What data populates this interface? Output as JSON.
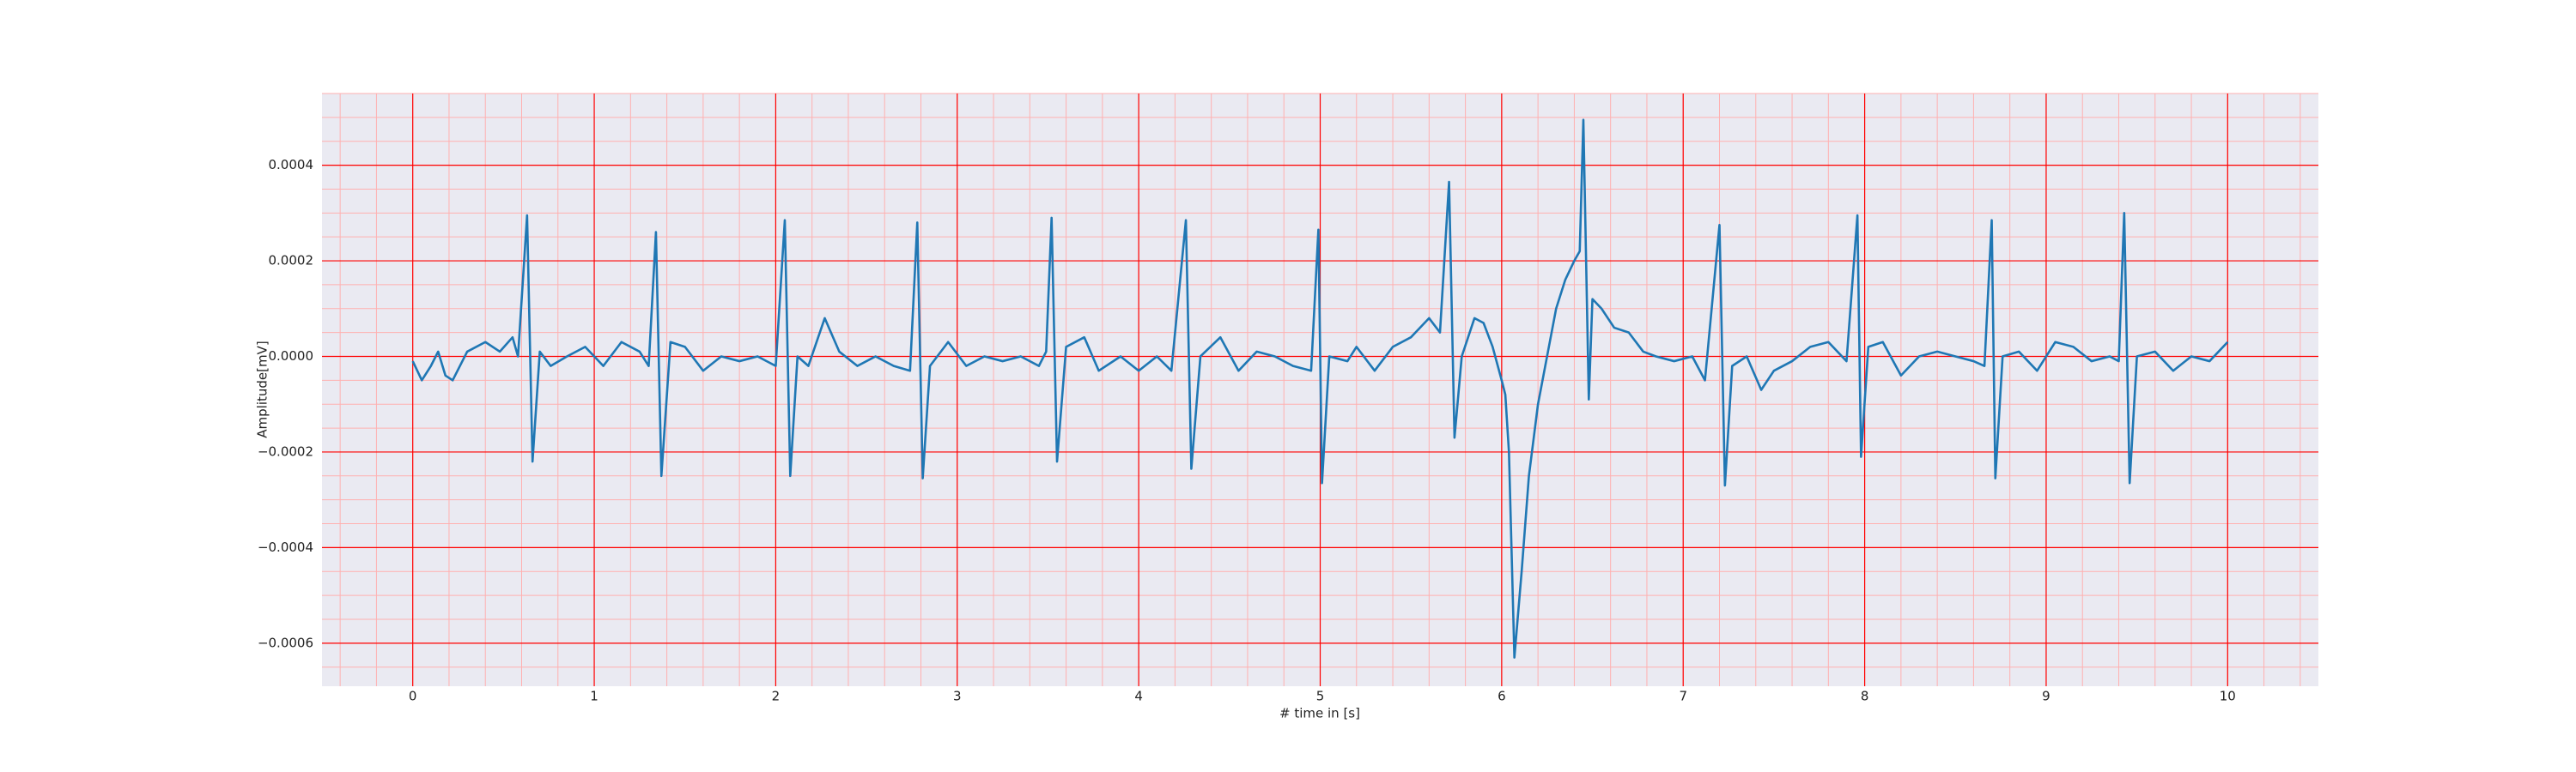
{
  "chart_data": {
    "type": "line",
    "xlabel": "# time in [s]",
    "ylabel": "Amplitude[mV]",
    "xlim": [
      -0.5,
      10.5
    ],
    "xticks": [
      0,
      1,
      2,
      3,
      4,
      5,
      6,
      7,
      8,
      9,
      10
    ],
    "ylim": [
      -0.00069,
      0.00055
    ],
    "yticks": [
      {
        "value": -0.0006,
        "label": "−0.0006"
      },
      {
        "value": -0.0004,
        "label": "−0.0004"
      },
      {
        "value": -0.0002,
        "label": "−0.0002"
      },
      {
        "value": 0,
        "label": "0.0000"
      },
      {
        "value": 0.0002,
        "label": "0.0002"
      },
      {
        "value": 0.0004,
        "label": "0.0004"
      }
    ],
    "grid": true,
    "minor_grid": true,
    "grid_color": "#ff0000",
    "minor_grid_color": "#ffb0b0",
    "background": "#eaeaf2",
    "series": [
      {
        "color": "#1f77b4",
        "x": [
          0,
          0.05,
          0.1,
          0.14,
          0.18,
          0.22,
          0.3,
          0.4,
          0.48,
          0.55,
          0.58,
          0.63,
          0.66,
          0.7,
          0.76,
          0.85,
          0.95,
          1.05,
          1.15,
          1.25,
          1.3,
          1.34,
          1.37,
          1.42,
          1.5,
          1.6,
          1.7,
          1.8,
          1.9,
          2.0,
          2.05,
          2.08,
          2.12,
          2.18,
          2.27,
          2.35,
          2.45,
          2.55,
          2.65,
          2.74,
          2.78,
          2.81,
          2.85,
          2.95,
          3.05,
          3.15,
          3.25,
          3.35,
          3.45,
          3.49,
          3.52,
          3.55,
          3.6,
          3.7,
          3.78,
          3.9,
          4.0,
          4.1,
          4.18,
          4.26,
          4.29,
          4.34,
          4.45,
          4.55,
          4.65,
          4.75,
          4.85,
          4.95,
          4.99,
          5.01,
          5.05,
          5.15,
          5.2,
          5.3,
          5.4,
          5.5,
          5.6,
          5.66,
          5.71,
          5.74,
          5.78,
          5.85,
          5.9,
          5.95,
          6.0,
          6.02,
          6.04,
          6.07,
          6.11,
          6.15,
          6.2,
          6.25,
          6.3,
          6.35,
          6.4,
          6.43,
          6.45,
          6.48,
          6.5,
          6.55,
          6.62,
          6.7,
          6.78,
          6.85,
          6.95,
          7.05,
          7.12,
          7.2,
          7.23,
          7.27,
          7.35,
          7.43,
          7.5,
          7.6,
          7.7,
          7.8,
          7.9,
          7.96,
          7.98,
          8.02,
          8.1,
          8.2,
          8.3,
          8.4,
          8.5,
          8.6,
          8.66,
          8.7,
          8.72,
          8.76,
          8.85,
          8.95,
          9.05,
          9.15,
          9.25,
          9.35,
          9.4,
          9.43,
          9.46,
          9.5,
          9.6,
          9.7,
          9.8,
          9.9,
          10.0
        ],
        "values": [
          -1e-05,
          -5e-05,
          -2e-05,
          1e-05,
          -4e-05,
          -5e-05,
          1e-05,
          3e-05,
          1e-05,
          4e-05,
          0.0,
          0.000295,
          -0.00022,
          1e-05,
          -2e-05,
          0.0,
          2e-05,
          -2e-05,
          3e-05,
          1e-05,
          -2e-05,
          0.00026,
          -0.00025,
          3e-05,
          2e-05,
          -3e-05,
          0.0,
          -1e-05,
          0.0,
          -2e-05,
          0.000285,
          -0.00025,
          0.0,
          -2e-05,
          8e-05,
          1e-05,
          -2e-05,
          0.0,
          -2e-05,
          -3e-05,
          0.00028,
          -0.000255,
          -2e-05,
          3e-05,
          -2e-05,
          0.0,
          -1e-05,
          0.0,
          -2e-05,
          1e-05,
          0.00029,
          -0.00022,
          2e-05,
          4e-05,
          -3e-05,
          0.0,
          -3e-05,
          0.0,
          -3e-05,
          0.000285,
          -0.000235,
          0.0,
          4e-05,
          -3e-05,
          1e-05,
          0.0,
          -2e-05,
          -3e-05,
          0.000265,
          -0.000265,
          0.0,
          -1e-05,
          2e-05,
          -3e-05,
          2e-05,
          4e-05,
          8e-05,
          5e-05,
          0.000365,
          -0.00017,
          0.0,
          8e-05,
          7e-05,
          2e-05,
          -5e-05,
          -8e-05,
          -0.0002,
          -0.00063,
          -0.00045,
          -0.00025,
          -0.0001,
          0.0,
          0.0001,
          0.00016,
          0.0002,
          0.00022,
          0.000495,
          -9e-05,
          0.00012,
          0.0001,
          6e-05,
          5e-05,
          1e-05,
          0.0,
          -1e-05,
          0.0,
          -5e-05,
          0.000275,
          -0.00027,
          -2e-05,
          0.0,
          -7e-05,
          -3e-05,
          -1e-05,
          2e-05,
          3e-05,
          -1e-05,
          0.000295,
          -0.00021,
          2e-05,
          3e-05,
          -4e-05,
          0.0,
          1e-05,
          0.0,
          -1e-05,
          -2e-05,
          0.000285,
          -0.000255,
          0.0,
          1e-05,
          -3e-05,
          3e-05,
          2e-05,
          -1e-05,
          0.0,
          -1e-05,
          0.0003,
          -0.000265,
          0.0,
          1e-05,
          -3e-05,
          0.0,
          -1e-05,
          3e-05
        ]
      }
    ]
  }
}
